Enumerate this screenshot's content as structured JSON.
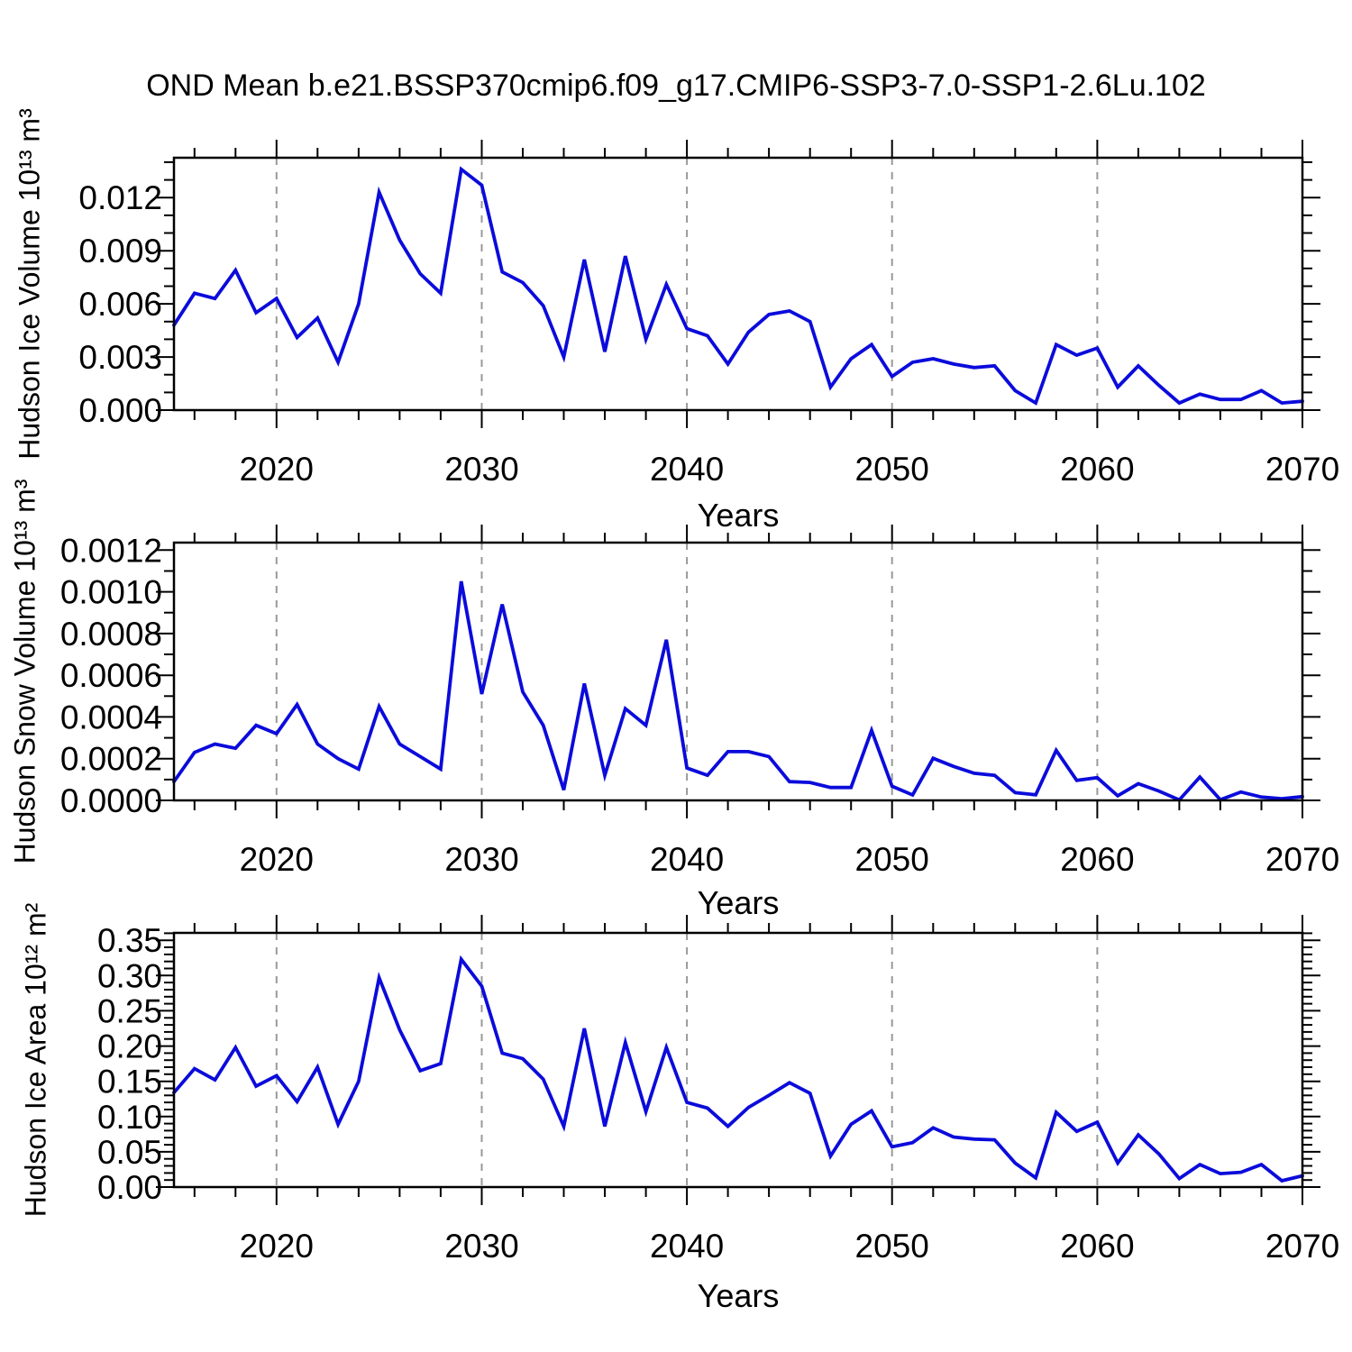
{
  "title": "OND Mean b.e21.BSSP370cmip6.f09_g17.CMIP6-SSP3-7.0-SSP1-2.6Lu.102",
  "colors": {
    "line": "#0b0bdb",
    "grid": "#999999",
    "axis": "#000000"
  },
  "x_axis": {
    "label": "Years",
    "xlim": [
      2015,
      2070
    ],
    "major_ticks": [
      2020,
      2030,
      2040,
      2050,
      2060,
      2070
    ],
    "major_tick_labels": [
      "2020",
      "2030",
      "2040",
      "2050",
      "2060",
      "2070"
    ],
    "minor_tick_step": 2,
    "gridline_years": [
      2020,
      2030,
      2040,
      2050,
      2060
    ]
  },
  "years": [
    2015,
    2016,
    2017,
    2018,
    2019,
    2020,
    2021,
    2022,
    2023,
    2024,
    2025,
    2026,
    2027,
    2028,
    2029,
    2030,
    2031,
    2032,
    2033,
    2034,
    2035,
    2036,
    2037,
    2038,
    2039,
    2040,
    2041,
    2042,
    2043,
    2044,
    2045,
    2046,
    2047,
    2048,
    2049,
    2050,
    2051,
    2052,
    2053,
    2054,
    2055,
    2056,
    2057,
    2058,
    2059,
    2060,
    2061,
    2062,
    2063,
    2064,
    2065,
    2066,
    2067,
    2068,
    2069,
    2070
  ],
  "chart_data": [
    {
      "type": "line",
      "name": "hudson-ice-volume",
      "ylabel": "Hudson Ice Volume 10¹³ m³",
      "series_color": "#0b0bdb",
      "ylim": [
        0,
        0.01425
      ],
      "y_major_ticks": [
        0,
        0.003,
        0.006,
        0.009,
        0.012
      ],
      "y_major_labels": [
        "0.000",
        "0.003",
        "0.006",
        "0.009",
        "0.012"
      ],
      "y_minor_step": 0.001,
      "grid": "dashed-vertical",
      "legend": "none",
      "values": [
        0.0048,
        0.0066,
        0.0063,
        0.0079,
        0.0055,
        0.0063,
        0.0041,
        0.0052,
        0.0027,
        0.006,
        0.0123,
        0.0096,
        0.0077,
        0.0066,
        0.0136,
        0.0127,
        0.0078,
        0.0072,
        0.0059,
        0.003,
        0.0085,
        0.0033,
        0.0087,
        0.004,
        0.0071,
        0.0046,
        0.0042,
        0.0026,
        0.0044,
        0.0054,
        0.0056,
        0.005,
        0.0013,
        0.0029,
        0.0037,
        0.0019,
        0.0027,
        0.0029,
        0.0026,
        0.0024,
        0.0025,
        0.0011,
        0.0004,
        0.0037,
        0.0031,
        0.0035,
        0.0013,
        0.0025,
        0.0014,
        0.0004,
        0.0009,
        0.0006,
        0.0006,
        0.0011,
        0.0004,
        0.0005
      ]
    },
    {
      "type": "line",
      "name": "hudson-snow-volume",
      "ylabel": "Hudson Snow Volume 10¹³ m³",
      "series_color": "#0b0bdb",
      "ylim": [
        0,
        0.001236
      ],
      "y_major_ticks": [
        0,
        0.0002,
        0.0004,
        0.0006,
        0.0008,
        0.001,
        0.0012
      ],
      "y_major_labels": [
        "0.0000",
        "0.0002",
        "0.0004",
        "0.0006",
        "0.0008",
        "0.0010",
        "0.0012"
      ],
      "y_minor_step": 0.0001,
      "grid": "dashed-vertical",
      "legend": "none",
      "values": [
        9e-05,
        0.00023,
        0.00027,
        0.00025,
        0.00036,
        0.00032,
        0.00046,
        0.00027,
        0.0002,
        0.00015,
        0.00045,
        0.00027,
        0.00021,
        0.00015,
        0.00105,
        0.00051,
        0.00094,
        0.00052,
        0.00036,
        5e-05,
        0.00056,
        0.00012,
        0.00044,
        0.00036,
        0.00077,
        0.000155,
        0.00012,
        0.000234,
        0.000234,
        0.00021,
        9e-05,
        8.6e-05,
        6.2e-05,
        6.2e-05,
        0.000336,
        6.8e-05,
        2.6e-05,
        0.000202,
        0.000163,
        0.00013,
        0.00012,
        3.7e-05,
        2.7e-05,
        0.00024,
        9.6e-05,
        0.000109,
        2.2e-05,
        8e-05,
        4.5e-05,
        2e-06,
        0.000112,
        3e-06,
        4e-05,
        1.6e-05,
        8e-06,
        1.8e-05
      ]
    },
    {
      "type": "line",
      "name": "hudson-ice-area",
      "ylabel": "Hudson Ice Area 10¹² m²",
      "series_color": "#0b0bdb",
      "ylim": [
        0,
        0.3605
      ],
      "y_major_ticks": [
        0,
        0.05,
        0.1,
        0.15,
        0.2,
        0.25,
        0.3,
        0.35
      ],
      "y_major_labels": [
        "0.00",
        "0.05",
        "0.10",
        "0.15",
        "0.20",
        "0.25",
        "0.30",
        "0.35"
      ],
      "y_minor_step": 0.01,
      "grid": "dashed-vertical",
      "legend": "none",
      "values": [
        0.134,
        0.168,
        0.152,
        0.198,
        0.143,
        0.158,
        0.121,
        0.17,
        0.089,
        0.15,
        0.297,
        0.223,
        0.165,
        0.175,
        0.323,
        0.285,
        0.19,
        0.182,
        0.153,
        0.086,
        0.225,
        0.086,
        0.205,
        0.107,
        0.198,
        0.12,
        0.112,
        0.086,
        0.113,
        0.13,
        0.148,
        0.133,
        0.044,
        0.089,
        0.108,
        0.057,
        0.063,
        0.084,
        0.071,
        0.068,
        0.067,
        0.034,
        0.013,
        0.106,
        0.079,
        0.092,
        0.034,
        0.074,
        0.047,
        0.012,
        0.032,
        0.019,
        0.021,
        0.032,
        0.009,
        0.016
      ]
    }
  ]
}
